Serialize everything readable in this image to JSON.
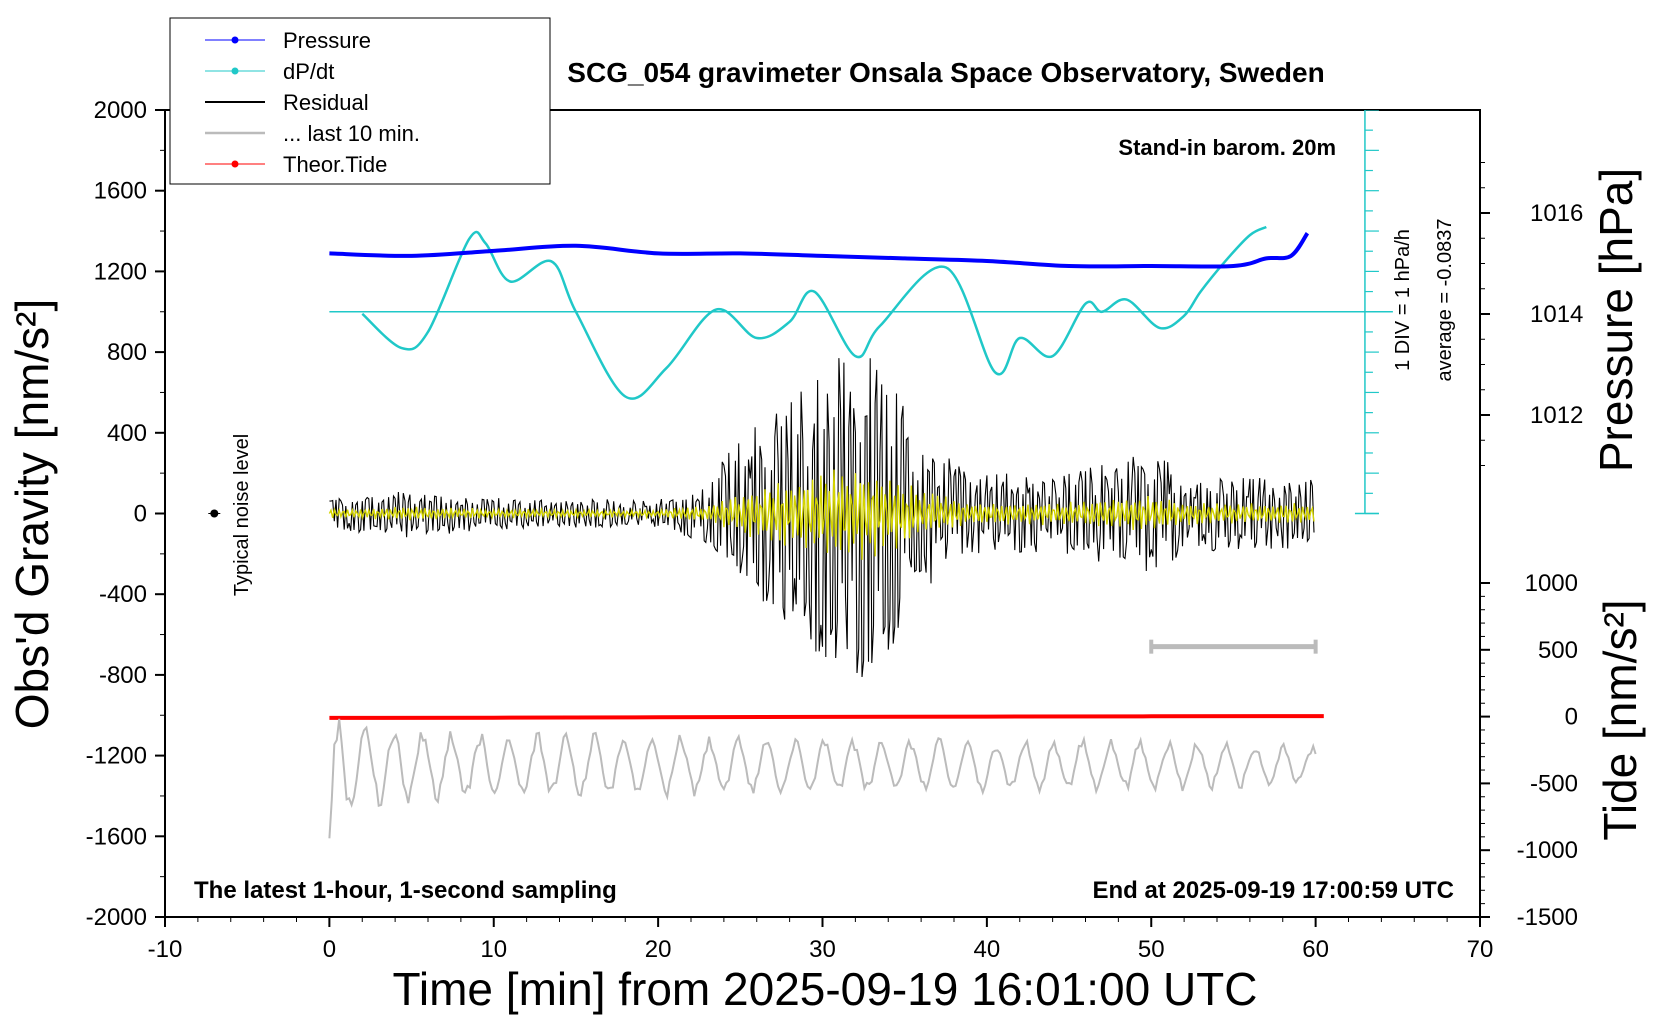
{
  "chart_data": {
    "type": "line",
    "title": "SCG_054 gravimeter Onsala Space Observatory, Sweden",
    "xlabel": "Time [min] from 2025-09-19 16:01:00 UTC",
    "ylabel_left": "Obs'd Gravity [nm/s²]",
    "ylabel_right_top": "Pressure [hPa]",
    "ylabel_right_bottom": "Tide [nm/s²]",
    "xlim": [
      -10,
      70
    ],
    "ylim_left": [
      -2000,
      2000
    ],
    "x_ticks": [
      -10,
      0,
      10,
      20,
      30,
      40,
      50,
      60,
      70
    ],
    "y_ticks_left": [
      2000,
      1600,
      1200,
      800,
      400,
      0,
      -400,
      -800,
      -1200,
      -1600,
      -2000
    ],
    "pressure_ticks": [
      1016,
      1014,
      1012
    ],
    "tide_ticks": [
      1000,
      500,
      0,
      -500,
      -1000,
      -1500
    ],
    "legend": {
      "placement": "top-left",
      "entries": [
        {
          "label": "Pressure",
          "color": "#0000ff"
        },
        {
          "label": "dP/dt",
          "color": "#20c8c8"
        },
        {
          "label": "Residual",
          "color": "#000000"
        },
        {
          "label": "... last 10 min.",
          "color": "#bbbbbb"
        },
        {
          "label": "Theor.Tide",
          "color": "#ff0000"
        }
      ]
    },
    "annotations": {
      "stand_in": "Stand-in barom. 20m",
      "div_label": "1 DIV = 1 hPa/h",
      "average_label": "average = -0.0837",
      "noise_label": "Typical noise level",
      "footer_left": "The latest 1-hour, 1-second sampling",
      "footer_right": "End at 2025-09-19 17:00:59 UTC"
    },
    "series": [
      {
        "name": "Pressure",
        "unit": "hPa",
        "color": "#0000ff",
        "x": [
          0,
          5,
          10,
          15,
          20,
          25,
          30,
          35,
          40,
          45,
          50,
          55,
          57,
          58.5,
          59.5
        ],
        "values": [
          1015.2,
          1015.15,
          1015.25,
          1015.35,
          1015.2,
          1015.2,
          1015.15,
          1015.1,
          1015.05,
          1014.95,
          1014.95,
          1014.95,
          1015.1,
          1015.15,
          1015.6
        ]
      },
      {
        "name": "dP/dt",
        "unit": "nm/s² (plot units)",
        "color": "#20c8c8",
        "x": [
          2,
          4.4,
          6,
          8.5,
          9.5,
          11,
          13.5,
          15,
          18,
          20.5,
          23.5,
          26,
          28,
          29.5,
          32,
          33.5,
          37.5,
          40.5,
          42,
          44,
          46,
          47,
          48.5,
          50.5,
          52,
          53,
          54.5,
          56,
          57
        ],
        "values": [
          990,
          820,
          900,
          1360,
          1340,
          1150,
          1250,
          1000,
          580,
          720,
          1010,
          870,
          950,
          1100,
          780,
          930,
          1220,
          700,
          870,
          780,
          1040,
          1000,
          1060,
          920,
          980,
          1100,
          1250,
          1380,
          1420
        ]
      },
      {
        "name": "Theor.Tide",
        "unit": "nm/s²",
        "color": "#ff0000",
        "x": [
          0,
          10,
          20,
          30,
          40,
          50,
          60.5
        ],
        "values": [
          -10,
          -8,
          -5,
          -2,
          0,
          2,
          4
        ]
      }
    ],
    "residual_envelope": {
      "name": "Residual",
      "color": "#000000",
      "overlay_color": "#d4d400",
      "x": [
        0,
        5,
        10,
        15,
        20,
        23,
        25,
        27,
        29,
        31,
        32.5,
        34,
        36,
        38,
        40,
        45,
        49,
        50.5,
        52,
        55,
        60
      ],
      "amplitude": [
        80,
        120,
        80,
        70,
        70,
        150,
        400,
        520,
        650,
        780,
        850,
        700,
        420,
        270,
        200,
        200,
        300,
        300,
        200,
        180,
        180
      ]
    },
    "last10_envelope": {
      "name": "... last 10 min.",
      "color": "#bbbbbb",
      "baseline": -1250,
      "x": [
        0,
        0.6,
        2,
        10,
        20,
        30,
        40,
        50,
        60
      ],
      "amplitude": [
        350,
        320,
        220,
        180,
        160,
        150,
        140,
        140,
        100
      ]
    },
    "scale_bar": {
      "x_start": 50,
      "x_end": 60,
      "y": -660
    },
    "noise_point": {
      "x": -7,
      "y": 0
    }
  }
}
